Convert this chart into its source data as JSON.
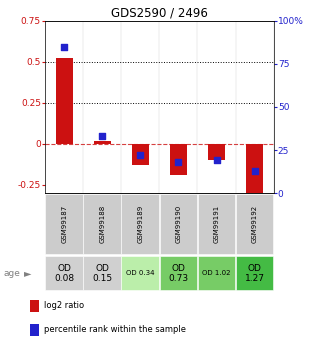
{
  "title": "GDS2590 / 2496",
  "samples": [
    "GSM99187",
    "GSM99188",
    "GSM99189",
    "GSM99190",
    "GSM99191",
    "GSM99192"
  ],
  "log2_ratio": [
    0.52,
    0.02,
    -0.13,
    -0.19,
    -0.1,
    -0.3
  ],
  "percentile_rank": [
    85,
    33,
    22,
    18,
    19,
    13
  ],
  "bar_color": "#cc1111",
  "dot_color": "#2222cc",
  "ylim_left": [
    -0.3,
    0.75
  ],
  "ylim_right": [
    0,
    100
  ],
  "yticks_left": [
    -0.25,
    0,
    0.25,
    0.5,
    0.75
  ],
  "yticks_right": [
    0,
    25,
    50,
    75,
    100
  ],
  "hline_values": [
    0.5,
    0.25
  ],
  "cell_labels_big": [
    "OD\n0.08",
    "OD\n0.15",
    null,
    "OD\n0.73",
    null,
    "OD\n1.27"
  ],
  "cell_labels_small": [
    null,
    null,
    "OD 0.34",
    null,
    "OD 1.02",
    null
  ],
  "cell_colors": [
    "#d0d0d0",
    "#d0d0d0",
    "#bbeeaa",
    "#77cc66",
    "#77cc66",
    "#44bb44"
  ],
  "gsm_bg_color": "#cccccc",
  "age_label": "age",
  "legend_items": [
    "log2 ratio",
    "percentile rank within the sample"
  ],
  "bg_color": "#ffffff"
}
